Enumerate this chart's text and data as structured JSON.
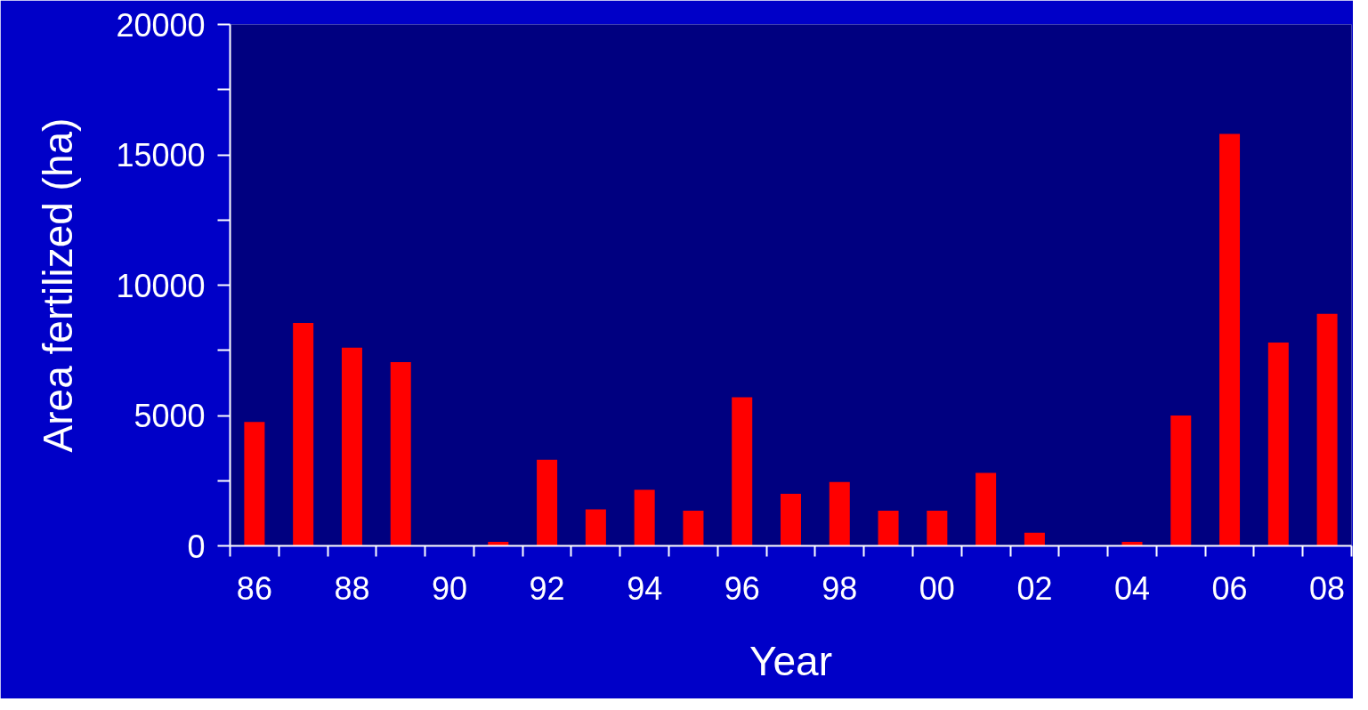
{
  "chart_data": {
    "type": "bar",
    "xlabel": "Year",
    "ylabel": "Area fertilized (ha)",
    "categories": [
      "86",
      null,
      "88",
      null,
      "90",
      null,
      "92",
      null,
      "94",
      null,
      "96",
      null,
      "98",
      null,
      "00",
      null,
      "02",
      null,
      "04",
      null,
      "06",
      null,
      "08"
    ],
    "values": [
      4750,
      8550,
      7600,
      7050,
      0,
      150,
      3300,
      1400,
      2150,
      1350,
      5700,
      2000,
      2450,
      1350,
      1350,
      2800,
      500,
      0,
      150,
      5000,
      15800,
      7800,
      8900
    ],
    "color": "#ff0000",
    "ylim": [
      0,
      20000
    ],
    "yticks": [
      0,
      {
        "value": 2500,
        "label": null
      },
      5000,
      {
        "value": 7500,
        "label": null
      },
      10000,
      {
        "value": 12500,
        "label": null
      },
      15000,
      {
        "value": 17500,
        "label": null
      },
      20000
    ],
    "grid": false
  }
}
